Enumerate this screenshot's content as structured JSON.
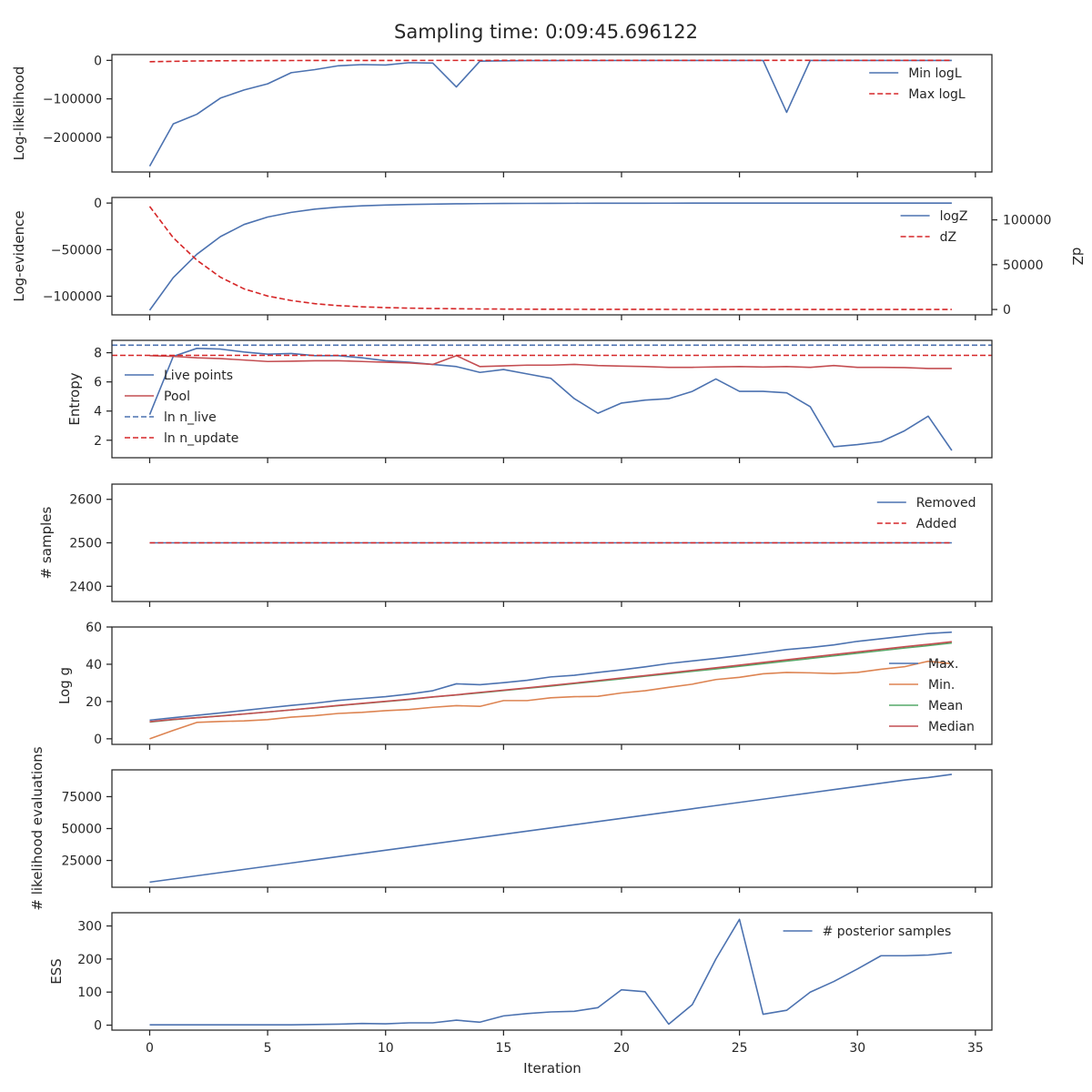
{
  "title": "Sampling time: 0:09:45.696122",
  "xlabel": "Iteration",
  "x_ticks": [
    0,
    5,
    10,
    15,
    20,
    25,
    30,
    35
  ],
  "colors": {
    "blue": "#4c72b0",
    "red": "#c44e52",
    "orange": "#dd8452",
    "green": "#55a868",
    "red_dashed": "#d62728",
    "text": "#262626"
  },
  "chart_data": [
    {
      "type": "line",
      "ylabel": "Log-likelihood",
      "ylim": [
        -290000,
        15000
      ],
      "yticks": [
        0,
        -100000,
        -200000
      ],
      "ytick_labels": [
        "0",
        "−100000",
        "−200000"
      ],
      "legend_position": "top-right",
      "series": [
        {
          "name": "Min logL",
          "color": "#4c72b0",
          "dashed": false,
          "values": [
            -275000,
            -165000,
            -140000,
            -98000,
            -77000,
            -61000,
            -32000,
            -24000,
            -14000,
            -11000,
            -12000,
            -6000,
            -7000,
            -69000,
            -2000,
            -1000,
            -500,
            -500,
            -400,
            -400,
            -300,
            -300,
            -200,
            -200,
            -200,
            -150,
            -150,
            -135000,
            -100,
            -100,
            -100,
            -100,
            -100,
            -100,
            -100
          ]
        },
        {
          "name": "Max logL",
          "color": "#d62728",
          "dashed": true,
          "values": [
            -3500,
            -2500,
            -1500,
            -1000,
            -800,
            -600,
            -400,
            -300,
            -200,
            -150,
            -120,
            -100,
            -80,
            -60,
            -50,
            -40,
            -30,
            -25,
            -20,
            -15,
            -12,
            -10,
            -8,
            -6,
            -5,
            -4,
            -3,
            -3,
            -2,
            -2,
            -2,
            -1,
            -1,
            -1,
            -1
          ]
        }
      ]
    },
    {
      "type": "line",
      "ylabel": "Log-evidence",
      "ylim": [
        -120000,
        6000
      ],
      "yticks": [
        0,
        -50000,
        -100000
      ],
      "ytick_labels": [
        "0",
        "−50000",
        "−100000"
      ],
      "twin_ylabel": "dZ",
      "twin_ylim": [
        -6000,
        125000
      ],
      "twin_yticks": [
        0,
        50000,
        100000
      ],
      "twin_ytick_labels": [
        "0",
        "50000",
        "100000"
      ],
      "legend_position": "top-right",
      "series": [
        {
          "name": "logZ",
          "color": "#4c72b0",
          "dashed": false,
          "axis": "left",
          "values": [
            -115000,
            -80000,
            -55000,
            -36000,
            -23000,
            -15000,
            -10000,
            -6500,
            -4300,
            -3000,
            -2100,
            -1500,
            -1100,
            -800,
            -600,
            -450,
            -350,
            -280,
            -220,
            -180,
            -150,
            -120,
            -100,
            -80,
            -70,
            -60,
            -50,
            -40,
            -35,
            -30,
            -25,
            -20,
            -18,
            -15,
            -12
          ]
        },
        {
          "name": "dZ",
          "color": "#d62728",
          "dashed": true,
          "axis": "right",
          "values": [
            115000,
            80000,
            55000,
            36000,
            23000,
            15000,
            10000,
            6500,
            4300,
            3000,
            2100,
            1500,
            1100,
            800,
            600,
            450,
            350,
            280,
            220,
            180,
            150,
            120,
            100,
            80,
            70,
            60,
            50,
            40,
            35,
            30,
            25,
            20,
            18,
            15,
            12
          ]
        }
      ]
    },
    {
      "type": "line",
      "ylabel": "Entropy",
      "ylim": [
        0.8,
        8.85
      ],
      "yticks": [
        2,
        4,
        6,
        8
      ],
      "ytick_labels": [
        "2",
        "4",
        "6",
        "8"
      ],
      "legend_position": "center-left",
      "series": [
        {
          "name": "Live points",
          "color": "#4c72b0",
          "dashed": false,
          "values": [
            3.75,
            7.75,
            8.3,
            8.25,
            8.05,
            7.9,
            7.95,
            7.8,
            7.8,
            7.65,
            7.45,
            7.35,
            7.2,
            7.05,
            6.65,
            6.85,
            6.55,
            6.25,
            4.85,
            3.85,
            4.55,
            4.75,
            4.85,
            5.35,
            6.2,
            5.35,
            5.35,
            5.25,
            4.3,
            1.55,
            1.7,
            1.9,
            2.65,
            3.65,
            1.3
          ]
        },
        {
          "name": "Pool",
          "color": "#c44e52",
          "dashed": false,
          "values": [
            7.8,
            7.75,
            7.65,
            7.6,
            7.5,
            7.4,
            7.42,
            7.45,
            7.45,
            7.4,
            7.35,
            7.3,
            7.2,
            7.8,
            7.05,
            7.1,
            7.15,
            7.15,
            7.2,
            7.12,
            7.08,
            7.05,
            7.0,
            7.0,
            7.03,
            7.05,
            7.02,
            7.05,
            7.0,
            7.12,
            7.0,
            7.0,
            6.98,
            6.92,
            6.92
          ]
        },
        {
          "name": "ln n_live",
          "color": "#4c72b0",
          "dashed": true,
          "hline": 8.52
        },
        {
          "name": "ln n_update",
          "color": "#d62728",
          "dashed": true,
          "hline": 7.82
        }
      ]
    },
    {
      "type": "line",
      "ylabel": "# samples",
      "ylim": [
        2365,
        2635
      ],
      "yticks": [
        2400,
        2500,
        2600
      ],
      "ytick_labels": [
        "2400",
        "2500",
        "2600"
      ],
      "legend_position": "top-right",
      "series": [
        {
          "name": "Removed",
          "color": "#4c72b0",
          "dashed": false,
          "values": [
            2500,
            2500,
            2500,
            2500,
            2500,
            2500,
            2500,
            2500,
            2500,
            2500,
            2500,
            2500,
            2500,
            2500,
            2500,
            2500,
            2500,
            2500,
            2500,
            2500,
            2500,
            2500,
            2500,
            2500,
            2500,
            2500,
            2500,
            2500,
            2500,
            2500,
            2500,
            2500,
            2500,
            2500,
            2500
          ]
        },
        {
          "name": "Added",
          "color": "#d62728",
          "dashed": true,
          "values": [
            2500,
            2500,
            2500,
            2500,
            2500,
            2500,
            2500,
            2500,
            2500,
            2500,
            2500,
            2500,
            2500,
            2500,
            2500,
            2500,
            2500,
            2500,
            2500,
            2500,
            2500,
            2500,
            2500,
            2500,
            2500,
            2500,
            2500,
            2500,
            2500,
            2500,
            2500,
            2500,
            2500,
            2500,
            2500
          ]
        }
      ]
    },
    {
      "type": "line",
      "ylabel": "Log g",
      "ylim": [
        -3,
        60
      ],
      "yticks": [
        0,
        20,
        40,
        60
      ],
      "ytick_labels": [
        "0",
        "20",
        "40",
        "60"
      ],
      "legend_position": "lower-right",
      "series": [
        {
          "name": "Max.",
          "color": "#4c72b0",
          "dashed": false,
          "values": [
            10,
            11.3,
            12.6,
            13.9,
            15.2,
            16.6,
            17.9,
            19.1,
            20.6,
            21.6,
            22.6,
            24,
            25.8,
            29.5,
            29,
            30.1,
            31.4,
            33.2,
            34.1,
            35.6,
            37,
            38.6,
            40.4,
            41.8,
            43.1,
            44.6,
            46.2,
            47.9,
            49,
            50.4,
            52.3,
            53.7,
            55.1,
            56.5,
            57.2
          ]
        },
        {
          "name": "Min.",
          "color": "#dd8452",
          "dashed": false,
          "values": [
            0,
            4.5,
            8.8,
            9.3,
            9.6,
            10.3,
            11.6,
            12.4,
            13.6,
            14.2,
            15.1,
            15.7,
            16.9,
            17.8,
            17.4,
            20.5,
            20.5,
            22,
            22.6,
            22.8,
            24.6,
            25.8,
            27.6,
            29.3,
            31.8,
            33,
            34.9,
            35.6,
            35.4,
            35,
            35.6,
            37.3,
            38.7,
            41.6,
            40.3
          ]
        },
        {
          "name": "Mean",
          "color": "#55a868",
          "dashed": false,
          "values": [
            9,
            10.3,
            11.3,
            12.3,
            13.3,
            14.4,
            15.5,
            16.6,
            17.8,
            18.9,
            20,
            21.1,
            22.4,
            23.5,
            24.7,
            25.9,
            27.1,
            28.3,
            29.6,
            30.9,
            32.2,
            33.6,
            34.9,
            36.2,
            37.5,
            38.9,
            40.3,
            41.7,
            43.1,
            44.5,
            45.9,
            47.3,
            48.7,
            50,
            51.4
          ]
        },
        {
          "name": "Median",
          "color": "#c44e52",
          "dashed": false,
          "values": [
            9.2,
            10.4,
            11.3,
            12.2,
            13.3,
            14.4,
            15.5,
            16.7,
            17.9,
            19,
            20.1,
            21.2,
            22.5,
            23.6,
            24.9,
            26.1,
            27.3,
            28.6,
            29.9,
            31.2,
            32.6,
            33.9,
            35.3,
            36.7,
            38.1,
            39.5,
            41,
            42.4,
            43.8,
            45.2,
            46.6,
            48,
            49.4,
            50.7,
            52.1
          ]
        }
      ]
    },
    {
      "type": "line",
      "ylabel": "# likelihood evaluations",
      "ylim": [
        4000,
        96000
      ],
      "yticks": [
        25000,
        50000,
        75000
      ],
      "ytick_labels": [
        "25000",
        "50000",
        "75000"
      ],
      "legend_position": "none",
      "series": [
        {
          "name": "",
          "color": "#4c72b0",
          "dashed": false,
          "values": [
            8000,
            10500,
            13000,
            15500,
            18000,
            20500,
            23000,
            25500,
            28000,
            30500,
            33000,
            35500,
            38000,
            40500,
            43000,
            45500,
            48000,
            50500,
            53000,
            55500,
            58000,
            60500,
            63000,
            65500,
            68000,
            70500,
            73000,
            75500,
            78000,
            80500,
            83000,
            85500,
            88000,
            90000,
            92500
          ]
        }
      ]
    },
    {
      "type": "line",
      "ylabel": "ESS",
      "ylim": [
        -15,
        340
      ],
      "yticks": [
        0,
        100,
        200,
        300
      ],
      "ytick_labels": [
        "0",
        "100",
        "200",
        "300"
      ],
      "legend_position": "top-right",
      "series": [
        {
          "name": "# posterior samples",
          "color": "#4c72b0",
          "dashed": false,
          "values": [
            1,
            1,
            1,
            1,
            1,
            1,
            1,
            2,
            3,
            5,
            4,
            7,
            7,
            15,
            9,
            28,
            35,
            40,
            42,
            53,
            107,
            101,
            3,
            62,
            200,
            320,
            33,
            45,
            100,
            132,
            170,
            210,
            210,
            212,
            219
          ]
        }
      ]
    }
  ]
}
